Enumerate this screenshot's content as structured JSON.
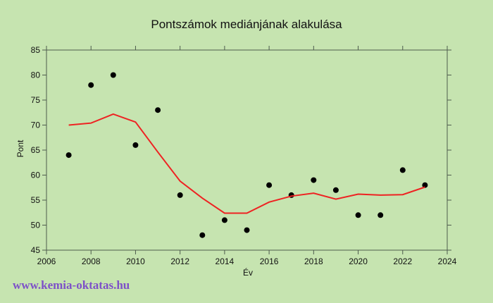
{
  "page": {
    "background_color": "#c6e4b0",
    "watermark": "www.kemia-oktatas.hu",
    "watermark_color": "#7d50c8"
  },
  "chart_data": {
    "type": "scatter",
    "title": "Pontszámok mediánjának alakulása",
    "xlabel": "Év",
    "ylabel": "Pont",
    "xlim": [
      2006,
      2024
    ],
    "ylim": [
      45,
      85
    ],
    "x_ticks": [
      2006,
      2008,
      2010,
      2012,
      2014,
      2016,
      2018,
      2020,
      2022,
      2024
    ],
    "y_ticks": [
      45,
      50,
      55,
      60,
      65,
      70,
      75,
      80,
      85
    ],
    "grid": false,
    "legend_position": "none",
    "axis_color": "#4d5b4d",
    "x": [
      2007,
      2008,
      2009,
      2010,
      2011,
      2012,
      2013,
      2014,
      2015,
      2016,
      2017,
      2018,
      2019,
      2020,
      2021,
      2022,
      2023
    ],
    "series": [
      {
        "name": "median-points",
        "render": "scatter",
        "color": "#000000",
        "marker_radius": 4,
        "values": [
          64,
          78,
          80,
          66,
          73,
          56,
          48,
          51,
          49,
          58,
          56,
          59,
          57,
          52,
          52,
          61,
          58
        ]
      },
      {
        "name": "trend-line",
        "render": "line",
        "color": "#ee2222",
        "line_width": 2,
        "values": [
          70.0,
          70.4,
          72.2,
          70.6,
          64.6,
          58.8,
          55.4,
          52.4,
          52.4,
          54.6,
          55.8,
          56.4,
          55.2,
          56.2,
          56.0,
          56.1,
          57.6
        ]
      }
    ]
  }
}
